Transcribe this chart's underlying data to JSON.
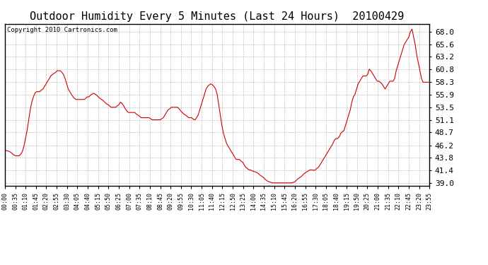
{
  "title": "Outdoor Humidity Every 5 Minutes (Last 24 Hours)  20100429",
  "copyright": "Copyright 2010 Cartronics.com",
  "line_color": "#cc0000",
  "background_color": "#ffffff",
  "grid_color": "#b0b0b0",
  "yticks": [
    39.0,
    41.4,
    43.8,
    46.2,
    48.7,
    51.1,
    53.5,
    55.9,
    58.3,
    60.8,
    63.2,
    65.6,
    68.0
  ],
  "ylim": [
    38.5,
    69.5
  ],
  "ylabel_fontsize": 8,
  "title_fontsize": 11,
  "xtick_fontsize": 6,
  "copyright_fontsize": 6.5,
  "humidity": [
    45.2,
    45.2,
    45.1,
    45.0,
    44.8,
    44.5,
    44.3,
    44.2,
    44.2,
    44.2,
    44.5,
    45.0,
    46.0,
    47.5,
    49.0,
    51.0,
    53.0,
    54.5,
    55.5,
    56.2,
    56.5,
    56.5,
    56.5,
    56.8,
    57.0,
    57.5,
    58.0,
    58.5,
    59.0,
    59.5,
    59.8,
    60.0,
    60.2,
    60.5,
    60.5,
    60.5,
    60.2,
    59.8,
    59.0,
    58.0,
    57.0,
    56.5,
    56.0,
    55.5,
    55.2,
    55.0,
    55.0,
    55.0,
    55.0,
    55.0,
    55.0,
    55.2,
    55.5,
    55.5,
    55.8,
    56.0,
    56.2,
    56.0,
    55.8,
    55.5,
    55.2,
    55.0,
    54.8,
    54.5,
    54.2,
    54.0,
    53.8,
    53.5,
    53.5,
    53.5,
    53.5,
    53.8,
    54.0,
    54.5,
    54.2,
    53.8,
    53.2,
    52.8,
    52.5,
    52.5,
    52.5,
    52.5,
    52.5,
    52.2,
    52.0,
    51.8,
    51.5,
    51.5,
    51.5,
    51.5,
    51.5,
    51.5,
    51.3,
    51.1,
    51.1,
    51.1,
    51.1,
    51.1,
    51.1,
    51.3,
    51.5,
    52.0,
    52.5,
    53.0,
    53.2,
    53.5,
    53.5,
    53.5,
    53.5,
    53.5,
    53.2,
    52.8,
    52.5,
    52.2,
    52.0,
    51.8,
    51.5,
    51.5,
    51.5,
    51.2,
    51.1,
    51.5,
    52.0,
    53.0,
    54.0,
    55.0,
    56.0,
    57.0,
    57.5,
    57.8,
    58.0,
    57.8,
    57.5,
    57.0,
    56.0,
    54.0,
    52.0,
    50.0,
    48.5,
    47.5,
    46.5,
    46.0,
    45.5,
    45.0,
    44.5,
    44.0,
    43.5,
    43.5,
    43.5,
    43.2,
    43.0,
    42.5,
    42.0,
    41.8,
    41.5,
    41.5,
    41.3,
    41.2,
    41.1,
    41.0,
    40.8,
    40.5,
    40.3,
    40.1,
    39.8,
    39.5,
    39.3,
    39.2,
    39.1,
    39.0,
    39.0,
    39.0,
    39.0,
    39.0,
    39.0,
    39.0,
    39.0,
    39.0,
    39.0,
    39.0,
    39.0,
    39.0,
    39.1,
    39.2,
    39.5,
    39.8,
    40.0,
    40.2,
    40.5,
    40.8,
    41.0,
    41.2,
    41.4,
    41.5,
    41.5,
    41.4,
    41.5,
    41.8,
    42.0,
    42.5,
    43.0,
    43.5,
    44.0,
    44.5,
    45.0,
    45.5,
    46.0,
    46.5,
    47.2,
    47.5,
    47.5,
    47.8,
    48.5,
    48.8,
    49.0,
    50.0,
    51.0,
    52.0,
    53.0,
    54.5,
    55.5,
    56.0,
    57.0,
    58.0,
    58.5,
    59.0,
    59.5,
    59.5,
    59.5,
    59.8,
    60.8,
    60.5,
    60.0,
    59.5,
    59.0,
    58.5,
    58.5,
    58.3,
    58.0,
    57.5,
    57.0,
    57.5,
    58.0,
    58.5,
    58.5,
    58.5,
    59.0,
    60.5,
    61.5,
    62.5,
    63.5,
    64.5,
    65.5,
    66.0,
    66.5,
    67.0,
    68.0,
    68.5,
    67.0,
    65.5,
    63.5,
    62.0,
    60.5,
    59.0,
    58.3,
    58.3,
    58.3,
    58.3,
    58.3
  ],
  "xtick_labels": [
    "00:00",
    "00:35",
    "01:10",
    "01:45",
    "02:20",
    "02:55",
    "03:30",
    "04:05",
    "04:40",
    "05:15",
    "05:50",
    "06:25",
    "07:00",
    "07:35",
    "08:10",
    "08:45",
    "09:20",
    "09:55",
    "10:30",
    "11:05",
    "11:40",
    "12:15",
    "12:50",
    "13:25",
    "14:00",
    "14:35",
    "15:10",
    "15:45",
    "16:20",
    "16:55",
    "17:30",
    "18:05",
    "18:40",
    "19:15",
    "19:50",
    "20:25",
    "21:00",
    "21:35",
    "22:10",
    "22:45",
    "23:20",
    "23:55"
  ]
}
